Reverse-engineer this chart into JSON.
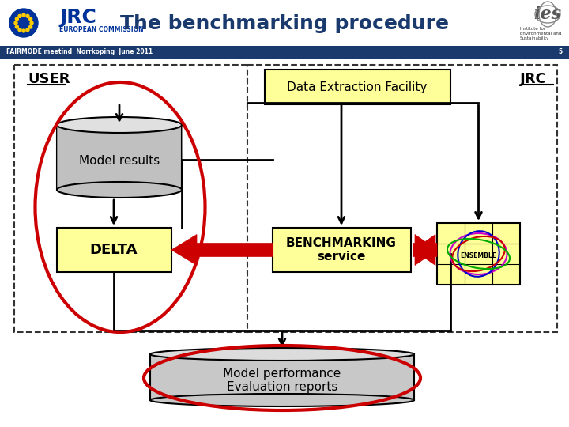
{
  "title": "The benchmarking procedure",
  "subtitle_bar": "FAIRMODE meetind  Norrkoping  June 2011",
  "page_num": "5",
  "bg_color": "#ffffff",
  "header_bar_color": "#1a3a6e",
  "header_bar_text_color": "#ffffff",
  "title_color": "#1a3a6e",
  "user_label": "USER",
  "jrc_label": "JRC",
  "data_extraction_text": "Data Extraction Facility",
  "model_results_text": "Model results",
  "delta_text": "DELTA",
  "benchmarking_text": "BENCHMARKING\nservice",
  "ensemble_text": "ENSEMBLE",
  "model_perf_text": "Model performance\nEvaluation reports",
  "yellow_box_color": "#ffff99",
  "gray_cyl_color": "#c0c0c0",
  "red_arrow_color": "#cc0000",
  "red_ellipse_color": "#cc0000",
  "dashed_box_color": "#333333",
  "black_arrow_color": "#000000"
}
